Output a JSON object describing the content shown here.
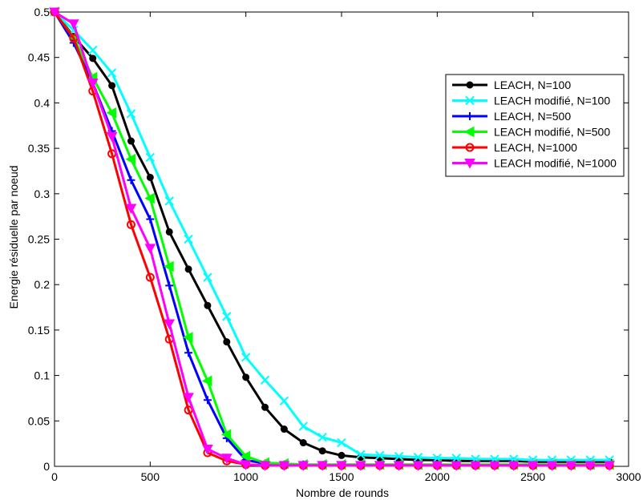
{
  "chart_data": {
    "type": "line",
    "title": "",
    "xlabel": "Nombre de rounds",
    "ylabel": "Energie résiduelle par noeud",
    "xlim": [
      0,
      3000
    ],
    "ylim": [
      0,
      0.5
    ],
    "xticks": [
      0,
      500,
      1000,
      1500,
      2000,
      2500,
      3000
    ],
    "xtick_labels": [
      "0",
      "500",
      "1000",
      "1500",
      "2000",
      "2500",
      "3000"
    ],
    "yticks": [
      0,
      0.05,
      0.1,
      0.15,
      0.2,
      0.25,
      0.3,
      0.35,
      0.4,
      0.45,
      0.5
    ],
    "ytick_labels": [
      "0",
      "0.05",
      "0.1",
      "0.15",
      "0.2",
      "0.25",
      "0.3",
      "0.35",
      "0.4",
      "0.45",
      "0.5"
    ],
    "grid": false,
    "legend_position": "top-right",
    "x": [
      0,
      100,
      200,
      300,
      400,
      500,
      600,
      700,
      800,
      900,
      1000,
      1100,
      1200,
      1300,
      1400,
      1500,
      1600,
      1700,
      1800,
      1900,
      2000,
      2100,
      2200,
      2300,
      2400,
      2500,
      2600,
      2700,
      2800,
      2900
    ],
    "series": [
      {
        "name": "LEACH, N=100",
        "color": "#000000",
        "marker": "dot",
        "values": [
          0.5,
          0.473,
          0.449,
          0.419,
          0.358,
          0.318,
          0.258,
          0.217,
          0.177,
          0.137,
          0.098,
          0.065,
          0.041,
          0.026,
          0.017,
          0.012,
          0.01,
          0.009,
          0.008,
          0.007,
          0.007,
          0.006,
          0.006,
          0.006,
          0.006,
          0.005,
          0.005,
          0.005,
          0.005,
          0.005
        ]
      },
      {
        "name": "LEACH modifié, N=100",
        "color": "#00ffff",
        "marker": "x",
        "values": [
          0.5,
          0.48,
          0.458,
          0.433,
          0.388,
          0.34,
          0.292,
          0.25,
          0.208,
          0.165,
          0.12,
          0.095,
          0.072,
          0.044,
          0.032,
          0.026,
          0.013,
          0.012,
          0.011,
          0.01,
          0.009,
          0.009,
          0.008,
          0.008,
          0.008,
          0.007,
          0.007,
          0.007,
          0.007,
          0.007
        ]
      },
      {
        "name": "LEACH, N=500",
        "color": "#0000ff",
        "marker": "plus",
        "values": [
          0.5,
          0.466,
          0.422,
          0.369,
          0.315,
          0.272,
          0.199,
          0.125,
          0.073,
          0.031,
          0.007,
          0.003,
          0.002,
          0.002,
          0.001,
          0.001,
          0.001,
          0.001,
          0.001,
          0.001,
          0.001,
          0.001,
          0.001,
          0.001,
          0.001,
          0.001,
          0.001,
          0.001,
          0.001,
          0.001
        ]
      },
      {
        "name": "LEACH modifié, N=500",
        "color": "#00ff00",
        "marker": "triangle-left",
        "values": [
          0.5,
          0.472,
          0.428,
          0.389,
          0.338,
          0.295,
          0.22,
          0.142,
          0.094,
          0.035,
          0.011,
          0.004,
          0.003,
          0.002,
          0.002,
          0.002,
          0.002,
          0.002,
          0.002,
          0.002,
          0.002,
          0.002,
          0.002,
          0.002,
          0.002,
          0.002,
          0.002,
          0.002,
          0.002,
          0.002
        ]
      },
      {
        "name": "LEACH, N=1000",
        "color": "#ff0000",
        "marker": "circle",
        "values": [
          0.5,
          0.471,
          0.413,
          0.344,
          0.266,
          0.208,
          0.14,
          0.062,
          0.015,
          0.006,
          0.002,
          0.001,
          0.001,
          0.001,
          0.001,
          0.001,
          0.001,
          0.001,
          0.001,
          0.001,
          0.001,
          0.001,
          0.001,
          0.001,
          0.001,
          0.001,
          0.001,
          0.001,
          0.001,
          0.001
        ]
      },
      {
        "name": "LEACH modifié, N=1000",
        "color": "#ff00ff",
        "marker": "triangle-down",
        "values": [
          0.5,
          0.487,
          0.422,
          0.363,
          0.284,
          0.24,
          0.157,
          0.076,
          0.019,
          0.009,
          0.002,
          0.001,
          0.001,
          0.001,
          0.001,
          0.001,
          0.001,
          0.001,
          0.001,
          0.001,
          0.001,
          0.001,
          0.001,
          0.001,
          0.001,
          0.001,
          0.001,
          0.001,
          0.001,
          0.001
        ]
      }
    ]
  }
}
